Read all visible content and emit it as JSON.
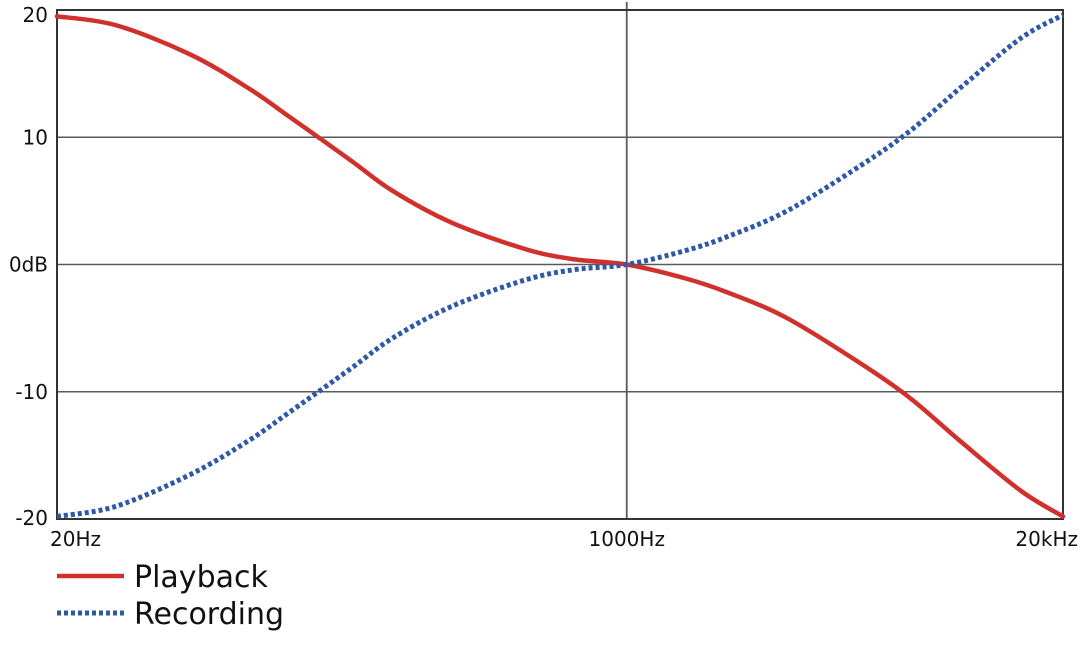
{
  "chart_data": {
    "type": "line",
    "title": "",
    "xlabel": "",
    "ylabel": "",
    "x_scale": "log",
    "xlim": [
      20,
      20000
    ],
    "ylim": [
      -20,
      20
    ],
    "grid": true,
    "legend_position": "bottom-left",
    "x_ticks": [
      {
        "value": 20,
        "label": "20Hz"
      },
      {
        "value": 1000,
        "label": "1000Hz"
      },
      {
        "value": 20000,
        "label": "20kHz"
      }
    ],
    "y_ticks": [
      {
        "value": 20,
        "label": "20"
      },
      {
        "value": 10,
        "label": "10"
      },
      {
        "value": 0,
        "label": "0dB"
      },
      {
        "value": -10,
        "label": "-10"
      },
      {
        "value": -20,
        "label": "-20"
      }
    ],
    "series": [
      {
        "name": "Playback",
        "color": "#d1312c",
        "line_style": "solid",
        "points": [
          {
            "x": 20,
            "y": 19.5
          },
          {
            "x": 30,
            "y": 18.8
          },
          {
            "x": 50,
            "y": 16.5
          },
          {
            "x": 75,
            "y": 13.8
          },
          {
            "x": 100,
            "y": 11.5
          },
          {
            "x": 150,
            "y": 8.2
          },
          {
            "x": 200,
            "y": 5.8
          },
          {
            "x": 300,
            "y": 3.3
          },
          {
            "x": 500,
            "y": 1.2
          },
          {
            "x": 700,
            "y": 0.4
          },
          {
            "x": 1000,
            "y": 0
          },
          {
            "x": 1500,
            "y": -1.1
          },
          {
            "x": 2000,
            "y": -2.2
          },
          {
            "x": 3000,
            "y": -4.2
          },
          {
            "x": 5000,
            "y": -7.8
          },
          {
            "x": 7000,
            "y": -10.5
          },
          {
            "x": 10000,
            "y": -14.0
          },
          {
            "x": 15000,
            "y": -17.8
          },
          {
            "x": 20000,
            "y": -19.8
          }
        ]
      },
      {
        "name": "Recording",
        "color": "#2f58a7",
        "line_style": "dotted",
        "points": [
          {
            "x": 20,
            "y": -19.8
          },
          {
            "x": 30,
            "y": -19.0
          },
          {
            "x": 50,
            "y": -16.5
          },
          {
            "x": 75,
            "y": -13.8
          },
          {
            "x": 100,
            "y": -11.5
          },
          {
            "x": 150,
            "y": -8.2
          },
          {
            "x": 200,
            "y": -5.8
          },
          {
            "x": 300,
            "y": -3.3
          },
          {
            "x": 500,
            "y": -1.2
          },
          {
            "x": 700,
            "y": -0.4
          },
          {
            "x": 1000,
            "y": 0
          },
          {
            "x": 1500,
            "y": 1.1
          },
          {
            "x": 2000,
            "y": 2.2
          },
          {
            "x": 3000,
            "y": 4.2
          },
          {
            "x": 5000,
            "y": 7.8
          },
          {
            "x": 7000,
            "y": 10.5
          },
          {
            "x": 10000,
            "y": 14.0
          },
          {
            "x": 15000,
            "y": 17.8
          },
          {
            "x": 20000,
            "y": 19.6
          }
        ]
      }
    ]
  }
}
